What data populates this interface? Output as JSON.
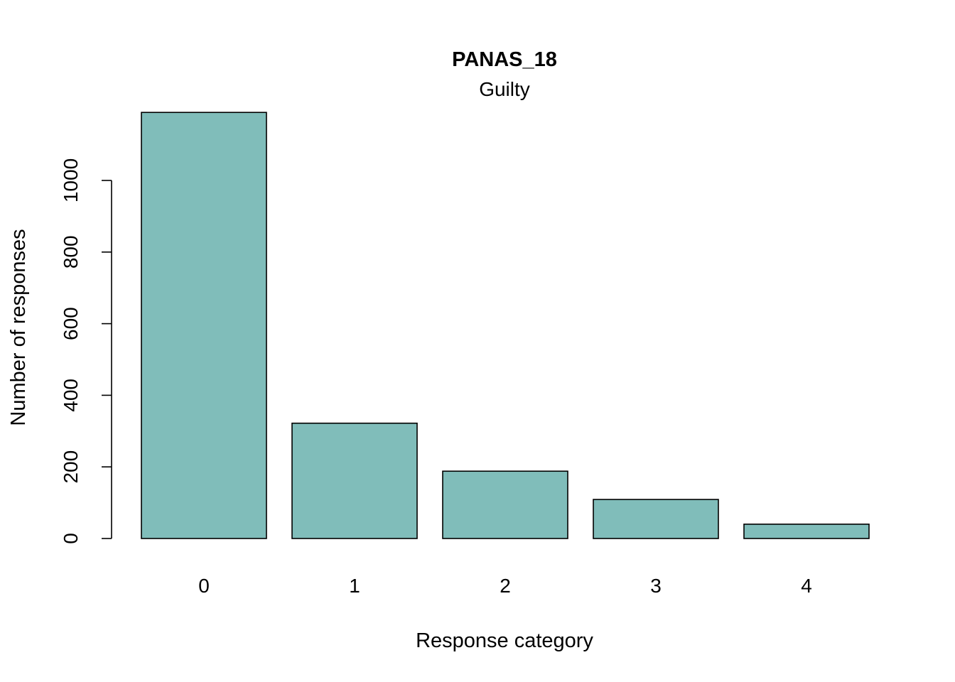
{
  "chart_data": {
    "type": "bar",
    "title": "PANAS_18",
    "subtitle": "Guilty",
    "xlabel": "Response category",
    "ylabel": "Number of responses",
    "categories": [
      "0",
      "1",
      "2",
      "3",
      "4"
    ],
    "values": [
      1190,
      322,
      188,
      109,
      40
    ],
    "ylim": [
      0,
      1190
    ],
    "yticks": [
      0,
      200,
      400,
      600,
      800,
      1000
    ],
    "ytick_labels": [
      "0",
      "200",
      "400",
      "600",
      "800",
      "1000"
    ],
    "grid": false,
    "legend": "none",
    "colors": {
      "bar_fill": "#80BDBA",
      "bar_stroke": "#000000",
      "axis": "#000000",
      "background": "#FFFFFF"
    }
  }
}
